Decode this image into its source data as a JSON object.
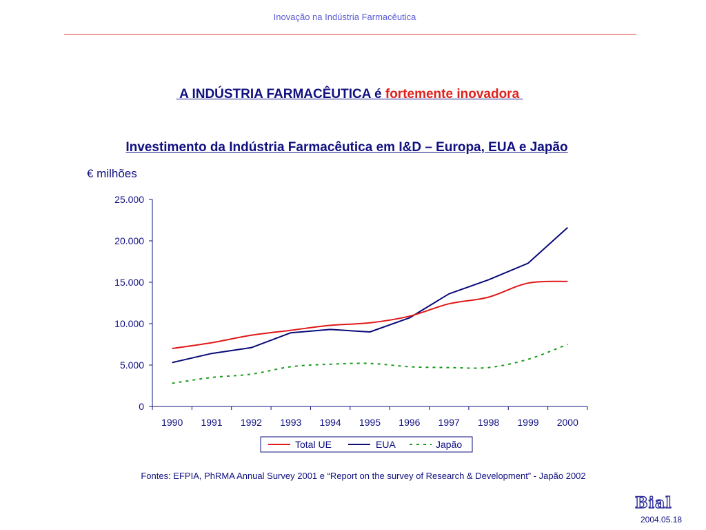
{
  "header": {
    "title": "Inovação  na  Indústria  Farmacêutica"
  },
  "slide": {
    "title_prefix": " A INDÚSTRIA FARMACÊUTICA é ",
    "title_highlight": "fortemente inovadora ",
    "sources": "Fontes:  EFPIA, PhRMA Annual Survey 2001 e “Report on the survey of Research & Development” - Japão 2002",
    "logo": "Bial",
    "date": "2004.05.18"
  },
  "chart_data": {
    "type": "line",
    "title": "Investimento da Indústria Farmacêutica em I&D – Europa, EUA e Japão",
    "ylabel": "€ milhões",
    "xlabel": "",
    "x": [
      "1990",
      "1991",
      "1992",
      "1993",
      "1994",
      "1995",
      "1996",
      "1997",
      "1998",
      "1999",
      "2000"
    ],
    "ylim": [
      0,
      25000
    ],
    "yticks": [
      0,
      5000,
      10000,
      15000,
      20000,
      25000
    ],
    "ytick_labels": [
      "0",
      "5.000",
      "10.000",
      "15.000",
      "20.000",
      "25.000"
    ],
    "series": [
      {
        "name": "Total UE",
        "color": "#e01818",
        "style": "solid",
        "smooth": true,
        "values": [
          7000,
          7700,
          8600,
          9200,
          9800,
          10100,
          10900,
          12400,
          13200,
          14900,
          15100
        ]
      },
      {
        "name": "EUA",
        "color": "#0a0a78",
        "style": "solid",
        "smooth": false,
        "values": [
          5300,
          6400,
          7100,
          8900,
          9300,
          9000,
          10700,
          13600,
          15300,
          17300,
          21600
        ]
      },
      {
        "name": "Japão",
        "color": "#1a9a1a",
        "style": "dashed",
        "smooth": true,
        "values": [
          2800,
          3500,
          3900,
          4800,
          5100,
          5200,
          4800,
          4700,
          4700,
          5700,
          7500
        ]
      }
    ],
    "legend_position": "bottom",
    "grid": false
  }
}
